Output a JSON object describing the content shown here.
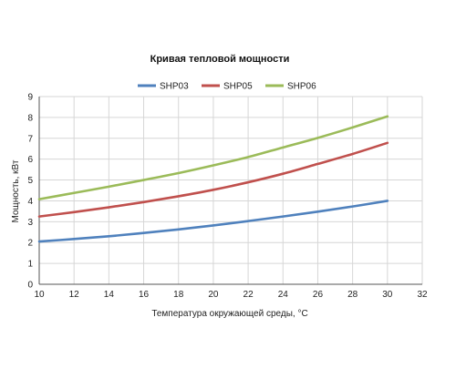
{
  "chart_data": {
    "type": "line",
    "title": "Кривая тепловой мощности",
    "xlabel": "Температура окружающей среды, °С",
    "ylabel": "Мощность, кВт",
    "x_ticks": [
      10,
      12,
      14,
      16,
      18,
      20,
      22,
      24,
      26,
      28,
      30,
      32
    ],
    "y_ticks": [
      0,
      1,
      2,
      3,
      4,
      5,
      6,
      7,
      8,
      9
    ],
    "xlim": [
      10,
      32
    ],
    "ylim": [
      0,
      9
    ],
    "grid": true,
    "legend_position": "top",
    "x": [
      10,
      12,
      14,
      16,
      18,
      20,
      22,
      24,
      26,
      28,
      30
    ],
    "series": [
      {
        "name": "SHP03",
        "color": "#4f81bd",
        "values": [
          2.05,
          2.17,
          2.3,
          2.46,
          2.63,
          2.82,
          3.03,
          3.25,
          3.48,
          3.73,
          4.0
        ]
      },
      {
        "name": "SHP05",
        "color": "#c0504d",
        "values": [
          3.25,
          3.46,
          3.69,
          3.94,
          4.22,
          4.53,
          4.89,
          5.3,
          5.77,
          6.25,
          6.78
        ]
      },
      {
        "name": "SHP06",
        "color": "#9bbb59",
        "values": [
          4.08,
          4.38,
          4.68,
          5.0,
          5.33,
          5.7,
          6.1,
          6.56,
          7.02,
          7.52,
          8.05
        ]
      }
    ]
  }
}
